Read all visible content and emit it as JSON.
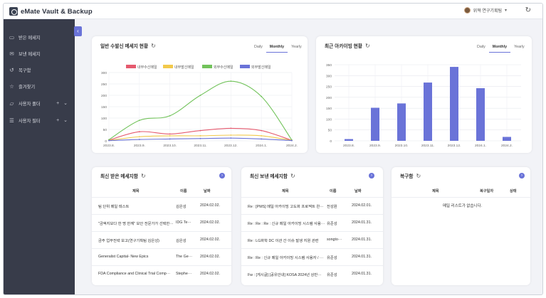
{
  "app": {
    "title": "eMate Vault & Backup"
  },
  "user": {
    "name": "위혁 연구기획팀"
  },
  "sidebar": {
    "items": [
      {
        "label": "받은 메세지",
        "icon": "inbox-icon"
      },
      {
        "label": "보낸 메세지",
        "icon": "sent-mail-icon"
      },
      {
        "label": "복구함",
        "icon": "restore-icon"
      },
      {
        "label": "즐겨찾기",
        "icon": "star-icon"
      },
      {
        "label": "사용자 폴더",
        "icon": "folder-icon"
      },
      {
        "label": "사용자 필터",
        "icon": "filter-icon"
      }
    ]
  },
  "tabs": {
    "daily": "Daily",
    "monthly": "Monthly",
    "yearly": "Yearly"
  },
  "cards": {
    "general_chart": {
      "title": "일반 수발신 메세지 현황"
    },
    "archive_chart": {
      "title": "최근 아카이빙 현황"
    },
    "received": {
      "title": "최신 받은 메세지함",
      "columns": [
        "제목",
        "이름",
        "날짜"
      ],
      "rows": [
        [
          "팀 단위 메일 테스트",
          "김은성",
          "2024.02.02."
        ],
        [
          "\"금액지보다 한 명 한께\" 보안 전문가가 선택한···",
          "IDG Te···",
          "2024.02.02."
        ],
        [
          "금주 업무전략 보고(연구기획팀 김은성)",
          "김은성",
          "2024.02.02."
        ],
        [
          "Generalist Capital- New Epics",
          "The Ge···",
          "2024.02.02."
        ],
        [
          "FDA Compliance and Clinical Trial Comp···",
          "Stephe···",
          "2024.02.02."
        ]
      ]
    },
    "sent": {
      "title": "최신 보낸 메세지함",
      "columns": [
        "제목",
        "이름",
        "날짜"
      ],
      "rows": [
        [
          "Re : [PMS] 메일 아카이빙 고도화 프로젝트 완···",
          "전성원",
          "2024.02.01."
        ],
        [
          "Re : Re : Re : 신규 메일 아카이빙 시스템 사용···",
          "유준성",
          "2024.01.31."
        ],
        [
          "Re : LG화학 DC 이관 간 이슈 발생 지원 관련",
          "songto···",
          "2024.01.31."
        ],
        [
          "Re : Re : 신규 메일 아카이빙 시스템 사용자 / ···",
          "유준성",
          "2024.01.31."
        ],
        [
          "Fw : [게시글] [공유안내] KOSA 2024년 상반···",
          "유준성",
          "2024.01.31."
        ]
      ]
    },
    "restore": {
      "title": "복구함",
      "columns": [
        "제목",
        "복구일자",
        "상태"
      ],
      "empty": "메일 리스트가 없습니다."
    }
  },
  "chart_data": [
    {
      "type": "line",
      "title": "일반 수발신 메세지 현황",
      "categories": [
        "2023.8.",
        "2023.9.",
        "2023.10.",
        "2023.11.",
        "2023.12.",
        "2024.1.",
        "2024.2."
      ],
      "ylim": [
        0,
        300
      ],
      "yticks": [
        0,
        50,
        100,
        150,
        200,
        250,
        300
      ],
      "legend_position": "top",
      "grid": true,
      "series": [
        {
          "name": "내부수신메일",
          "color": "#e55a6e",
          "values": [
            3,
            40,
            30,
            45,
            55,
            45,
            2
          ]
        },
        {
          "name": "내부발신메일",
          "color": "#f2c94c",
          "values": [
            2,
            18,
            22,
            22,
            25,
            22,
            2
          ]
        },
        {
          "name": "외부수신메일",
          "color": "#72c35b",
          "values": [
            5,
            90,
            110,
            200,
            262,
            195,
            3
          ]
        },
        {
          "name": "외부발신메일",
          "color": "#6a73d8",
          "values": [
            1,
            6,
            8,
            10,
            12,
            8,
            1
          ]
        }
      ]
    },
    {
      "type": "bar",
      "title": "최근 아카이빙 현황",
      "categories": [
        "2023.8.",
        "2023.9.",
        "2023.10.",
        "2023.11.",
        "2023.12.",
        "2024.1.",
        "2024.2."
      ],
      "values": [
        8,
        152,
        172,
        268,
        340,
        242,
        18
      ],
      "color": "#6a73d8",
      "ylim": [
        0,
        350
      ],
      "yticks": [
        0,
        50,
        100,
        150,
        200,
        250,
        300,
        350
      ],
      "grid": true
    }
  ]
}
